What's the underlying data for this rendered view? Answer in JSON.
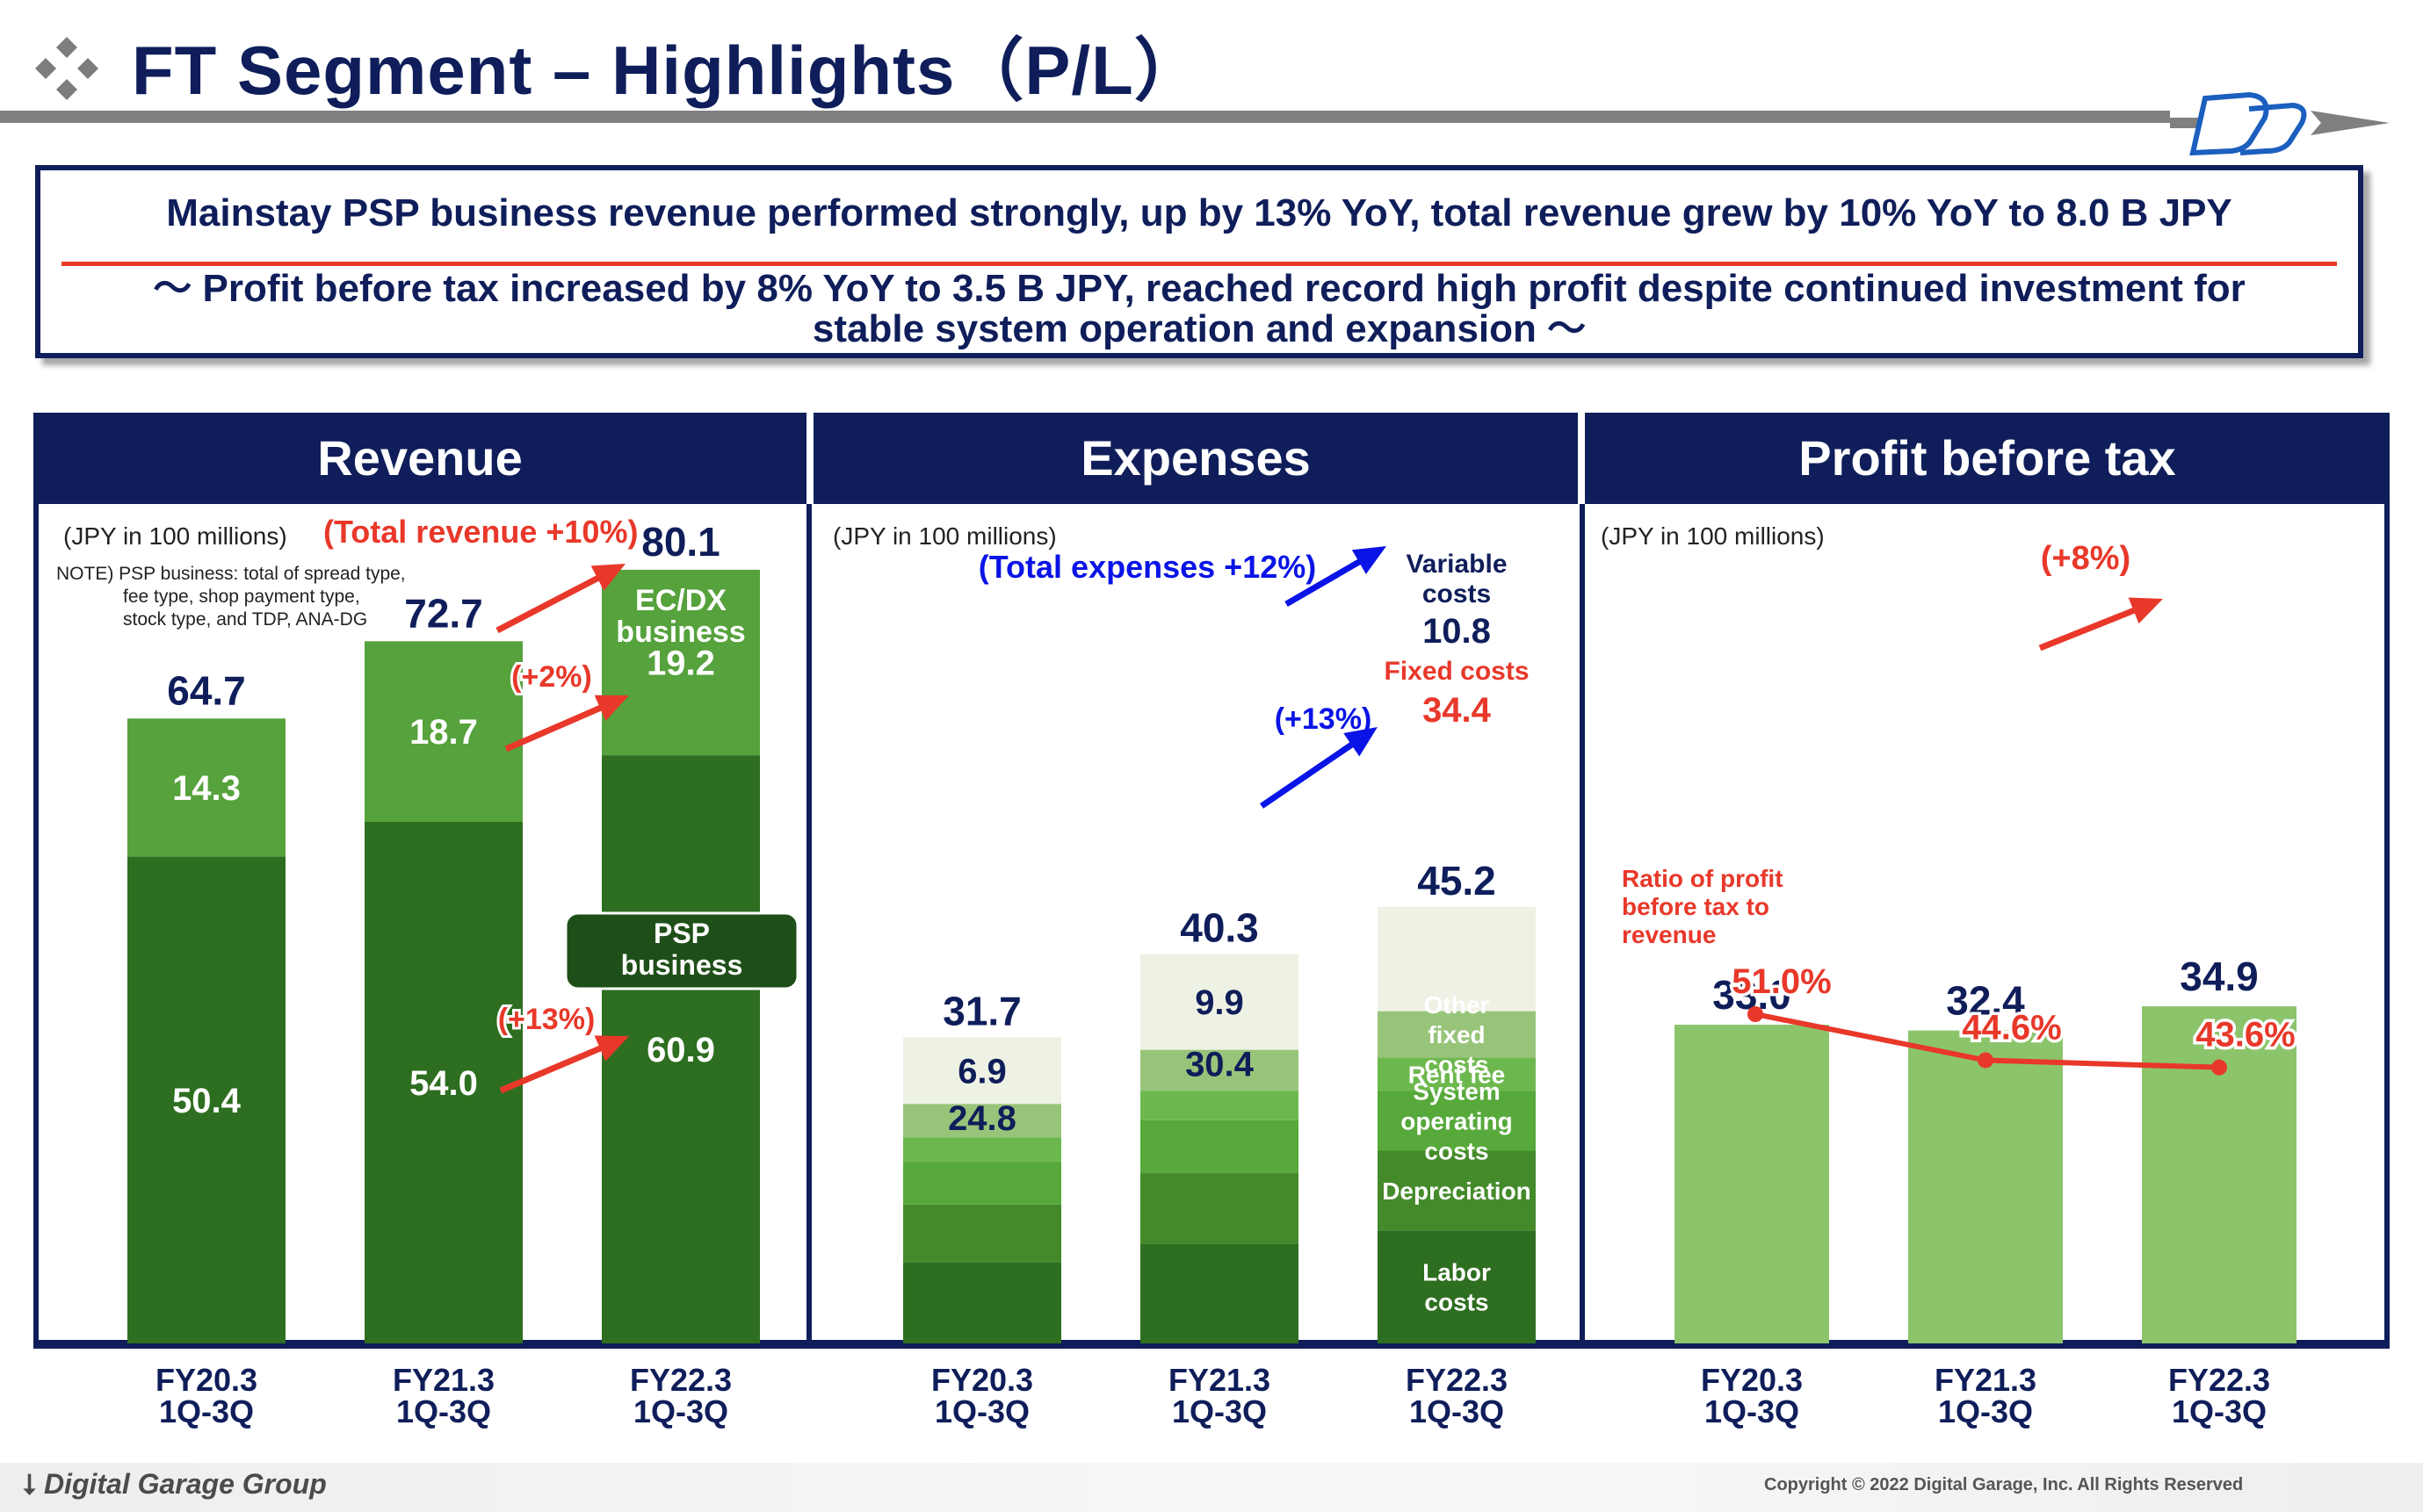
{
  "header": {
    "title": "FT Segment – Highlights（P/L）"
  },
  "summary": {
    "line1": "Mainstay PSP business revenue performed strongly, up by 13% YoY, total revenue grew by 10% YoY to 8.0 B JPY",
    "line2": "～ Profit before tax increased by 8% YoY to 3.5 B JPY, reached record high profit despite continued investment for stable system operation and expansion ～"
  },
  "footer": {
    "logo_text": "Digital Garage Group",
    "copyright": "Copyright © 2022 Digital Garage, Inc. All Rights Reserved"
  },
  "colors": {
    "navy": "#0f1e5a",
    "red": "#e8382a",
    "blue": "#0a14e6",
    "dark_green": "#2e6e20",
    "light_green": "#56a23c",
    "pale": "#eef2e4",
    "profit_green": "#8cc46c"
  },
  "chart_data": [
    {
      "type": "bar",
      "title": "Revenue",
      "unit_label": "(JPY in 100 millions)",
      "headline": "(Total revenue +10%)",
      "note": [
        "NOTE) PSP business: total of spread type,",
        "fee type, shop payment type,",
        "stock type, and TDP, ANA-DG"
      ],
      "categories": [
        "FY20.3\n1Q-3Q",
        "FY21.3\n1Q-3Q",
        "FY22.3\n1Q-3Q"
      ],
      "series": [
        {
          "name": "PSP business",
          "values": [
            50.4,
            54.0,
            60.9
          ]
        },
        {
          "name": "EC/DX business",
          "values": [
            14.3,
            18.7,
            19.2
          ]
        }
      ],
      "totals": [
        64.7,
        72.7,
        80.1
      ],
      "growth_labels": [
        "(+13%)",
        "(+2%)"
      ],
      "ylim": [
        0,
        90
      ]
    },
    {
      "type": "bar",
      "title": "Expenses",
      "unit_label": "(JPY in 100 millions)",
      "headline": "(Total expenses +12%)",
      "categories": [
        "FY20.3\n1Q-3Q",
        "FY21.3\n1Q-3Q",
        "FY22.3\n1Q-3Q"
      ],
      "fixed_costs": [
        24.8,
        30.4,
        34.4
      ],
      "variable_costs": [
        6.9,
        9.9,
        10.8
      ],
      "totals": [
        31.7,
        40.3,
        45.2
      ],
      "fixed_cost_breakdown": [
        "Labor costs",
        "Depreciation",
        "System operating costs",
        "Rent fee",
        "Other fixed costs"
      ],
      "labels": {
        "variable": "Variable costs",
        "fixed": "Fixed costs",
        "fixed_growth": "(+13%)"
      },
      "ylim": [
        0,
        90
      ]
    },
    {
      "type": "bar",
      "title": "Profit before tax",
      "unit_label": "(JPY in 100 millions)",
      "categories": [
        "FY20.3\n1Q-3Q",
        "FY21.3\n1Q-3Q",
        "FY22.3\n1Q-3Q"
      ],
      "values": [
        33.0,
        32.4,
        34.9
      ],
      "growth_label": "(+8%)",
      "ratio": {
        "name": "Ratio of profit before tax to revenue",
        "values": [
          51.0,
          44.6,
          43.6
        ],
        "labels": [
          "51.0%",
          "44.6%",
          "43.6%"
        ]
      },
      "ylim": [
        0,
        90
      ]
    }
  ]
}
